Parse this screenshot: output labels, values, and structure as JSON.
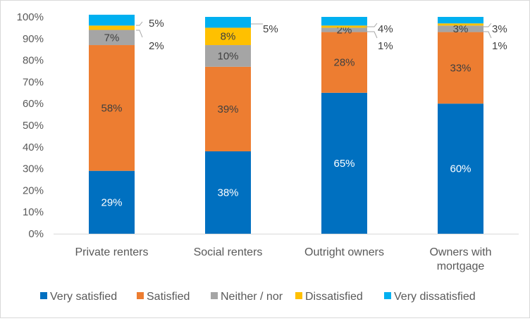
{
  "chart_data": {
    "type": "bar",
    "stacked": true,
    "title": "",
    "xlabel": "",
    "ylabel": "",
    "ylim": [
      0,
      100
    ],
    "yticks": [
      "0%",
      "10%",
      "20%",
      "30%",
      "40%",
      "50%",
      "60%",
      "70%",
      "80%",
      "90%",
      "100%"
    ],
    "grid": false,
    "legend_position": "bottom",
    "categories": [
      [
        "Private renters"
      ],
      [
        "Social renters"
      ],
      [
        "Outright owners"
      ],
      [
        "Owners with",
        "mortgage"
      ]
    ],
    "series": [
      {
        "name": "Very satisfied",
        "color": "#0070C0",
        "values": [
          29,
          38,
          65,
          60
        ],
        "labels": [
          "29%",
          "38%",
          "65%",
          "60%"
        ]
      },
      {
        "name": "Satisfied",
        "color": "#ED7D31",
        "values": [
          58,
          39,
          28,
          33
        ],
        "labels": [
          "58%",
          "39%",
          "28%",
          "33%"
        ]
      },
      {
        "name": "Neither / nor",
        "color": "#A5A5A5",
        "values": [
          7,
          10,
          2,
          3
        ],
        "labels": [
          "7%",
          "10%",
          "2%",
          "3%"
        ]
      },
      {
        "name": "Dissatisfied",
        "color": "#FFC000",
        "values": [
          2,
          8,
          1,
          1
        ],
        "labels": [
          "2%",
          "8%",
          "1%",
          "1%"
        ]
      },
      {
        "name": "Very dissatisfied",
        "color": "#00B0F0",
        "values": [
          5,
          5,
          4,
          3
        ],
        "labels": [
          "5%",
          "5%",
          "4%",
          "3%"
        ]
      }
    ]
  }
}
